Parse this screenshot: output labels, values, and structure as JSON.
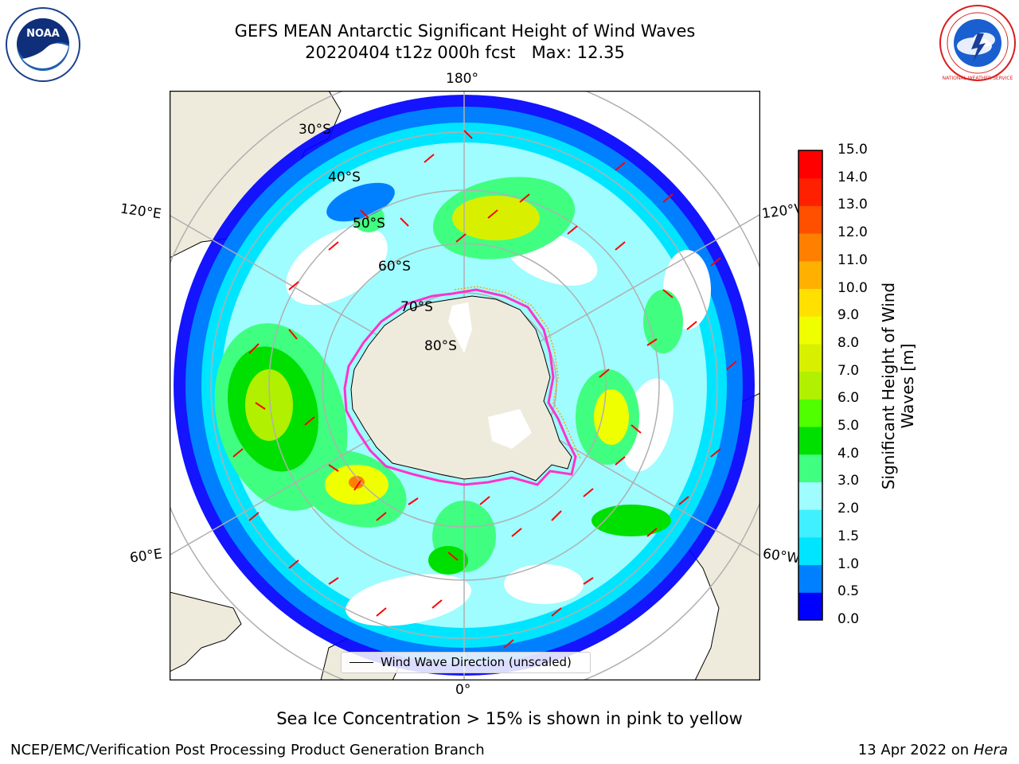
{
  "header": {
    "title_line1": "GEFS MEAN Antarctic Significant Height of Wind Waves",
    "title_line2": "20220404 t12z 000h fcst   Max: 12.35"
  },
  "logos": {
    "noaa": {
      "text": "NOAA",
      "ring_text": "NATIONAL OCEANIC AND ATMOSPHERIC ADMINISTRATION · U.S. DEPARTMENT OF COMMERCE"
    },
    "nws": {
      "ring_text": "NATIONAL WEATHER SERVICE"
    }
  },
  "map": {
    "projection": "south-polar-stereographic",
    "longitude_labels": {
      "top": "180°",
      "bottom": "0°",
      "upper_left": "120°E",
      "upper_right": "120°W",
      "lower_left": "60°E",
      "lower_right": "60°W"
    },
    "latitude_labels": [
      "30°S",
      "40°S",
      "50°S",
      "60°S",
      "70°S",
      "80°S"
    ],
    "legend_text": "Wind Wave Direction (unscaled)",
    "colors": {
      "land": "#efebdc",
      "sea_ice_contour": [
        "#ff33cc",
        "#ffa500",
        "#ffff00"
      ]
    }
  },
  "colorbar": {
    "label": "Significant Height of Wind Waves [m]",
    "ticks": [
      "15.0",
      "14.0",
      "13.0",
      "12.0",
      "11.0",
      "10.0",
      "9.0",
      "8.0",
      "7.0",
      "6.0",
      "5.0",
      "4.0",
      "3.0",
      "2.0",
      "1.5",
      "1.0",
      "0.5",
      "0.0"
    ],
    "colors_bottom_to_top": [
      "#0000ff",
      "#0080ff",
      "#00e5ff",
      "#40f0ff",
      "#9ffcff",
      "#40ff80",
      "#00e000",
      "#50ff00",
      "#b0f000",
      "#d8f000",
      "#f0ff00",
      "#ffe000",
      "#ffb000",
      "#ff8000",
      "#ff5000",
      "#ff2000",
      "#ff0000"
    ]
  },
  "footer": {
    "sea_ice_note": "Sea Ice Concentration > 15% is shown in pink to yellow",
    "credit_left": "NCEP/EMC/Verification Post Processing Product Generation Branch",
    "credit_date": "13 Apr 2022 on ",
    "credit_system": "Hera"
  }
}
